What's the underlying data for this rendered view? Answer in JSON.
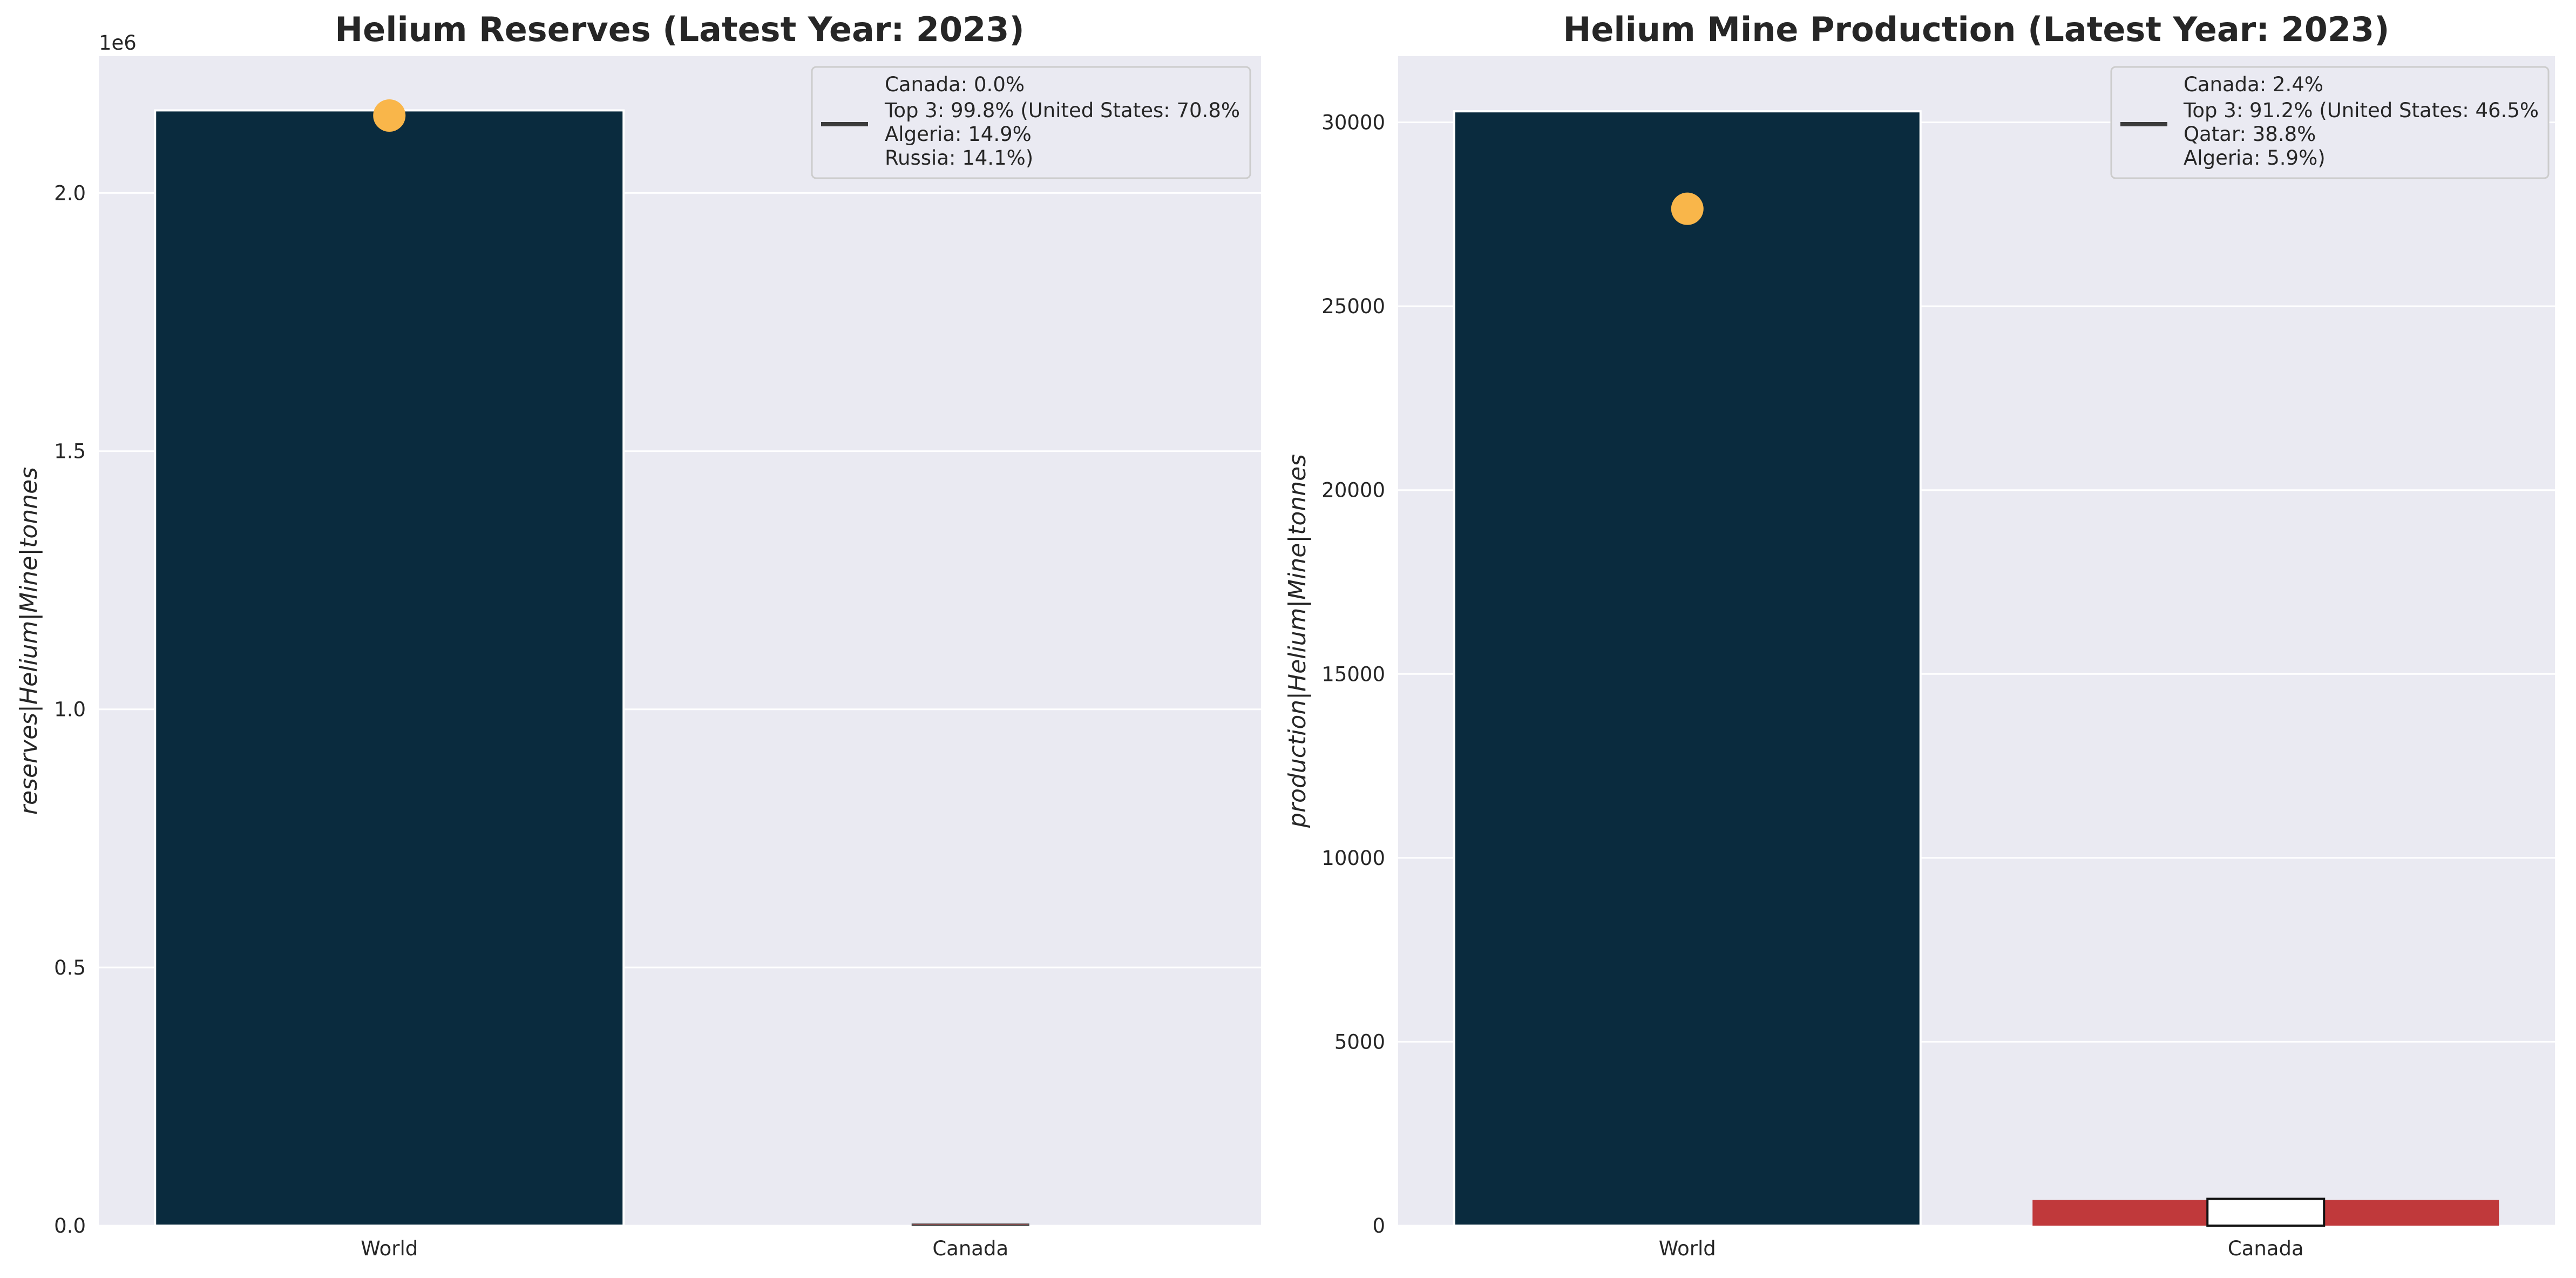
{
  "chart_data": [
    {
      "type": "bar",
      "title": "Helium Reserves (Latest Year: 2023)",
      "xlabel": "",
      "ylabel": "reserves|Helium|Mine|tonnes",
      "offset_label": "1e6",
      "categories": [
        "World",
        "Canada"
      ],
      "values": [
        2160000,
        0
      ],
      "marker": {
        "category": "World",
        "value": 2150000
      },
      "ylim": [
        0,
        2265000
      ],
      "yticks": [
        0,
        500000,
        1000000,
        1500000,
        2000000
      ],
      "ytick_labels": [
        "0.0",
        "0.5",
        "1.0",
        "1.5",
        "2.0"
      ],
      "legend_lines": [
        "Canada: 0.0%",
        "Top 3: 99.8% (United States: 70.8%",
        "Algeria: 14.9%",
        "Russia: 14.1%)"
      ],
      "legend_position": "top-right",
      "grid": true,
      "colors": {
        "world_bar": "#0a2b3e",
        "canada_bar": "#c0393b",
        "marker": "#f9b64a",
        "background": "#eaeaf2"
      }
    },
    {
      "type": "bar",
      "title": "Helium Mine Production (Latest Year: 2023)",
      "xlabel": "",
      "ylabel": "production|Helium|Mine|tonnes",
      "categories": [
        "World",
        "Canada"
      ],
      "values": [
        30300,
        700
      ],
      "marker": {
        "category": "World",
        "value": 27650
      },
      "ylim": [
        0,
        31800
      ],
      "yticks": [
        0,
        5000,
        10000,
        15000,
        20000,
        25000,
        30000
      ],
      "ytick_labels": [
        "0",
        "5000",
        "10000",
        "15000",
        "20000",
        "25000",
        "30000"
      ],
      "legend_lines": [
        "Canada: 2.4%",
        "Top 3: 91.2% (United States: 46.5%",
        "Qatar: 38.8%",
        "Algeria: 5.9%)"
      ],
      "legend_position": "top-right",
      "grid": true,
      "colors": {
        "world_bar": "#0a2b3e",
        "canada_bar": "#c0393b",
        "marker": "#f9b64a",
        "background": "#eaeaf2"
      }
    }
  ]
}
